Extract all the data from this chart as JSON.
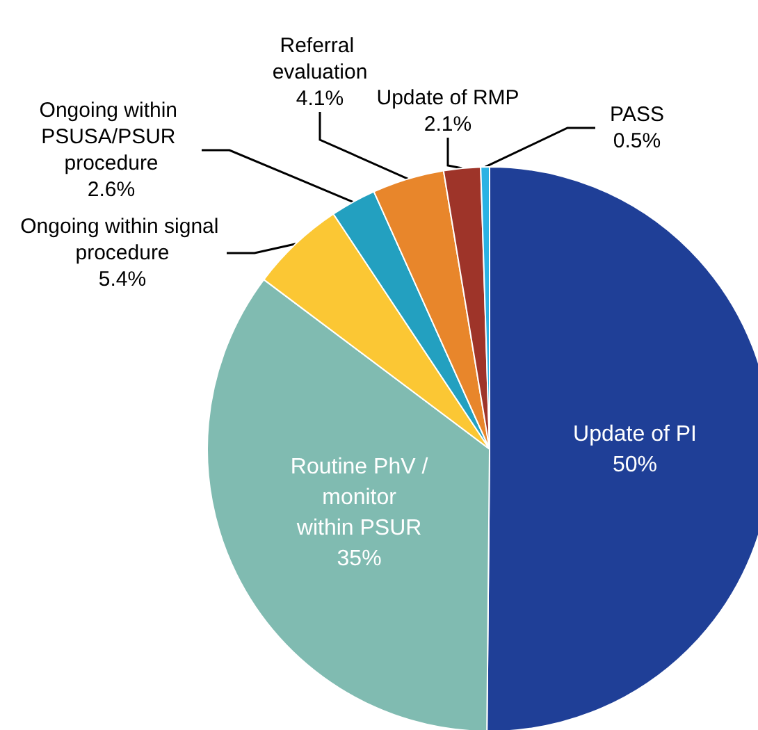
{
  "chart_data": {
    "type": "pie",
    "categories": [
      "Update of PI",
      "Routine PhV / monitor within PSUR",
      "Ongoing within signal procedure",
      "Ongoing within PSUSA/PSUR procedure",
      "Referral evaluation",
      "Update of RMP",
      "PASS"
    ],
    "values": [
      50,
      35,
      5.4,
      2.6,
      4.1,
      2.1,
      0.5
    ],
    "value_labels": [
      "50%",
      "35%",
      "5.4%",
      "2.6%",
      "4.1%",
      "2.1%",
      "0.5%"
    ],
    "colors": [
      "#1f3f97",
      "#80bbb1",
      "#fbc734",
      "#23a0c0",
      "#e8862b",
      "#9e3429",
      "#2bb2e3"
    ],
    "legend": false
  }
}
